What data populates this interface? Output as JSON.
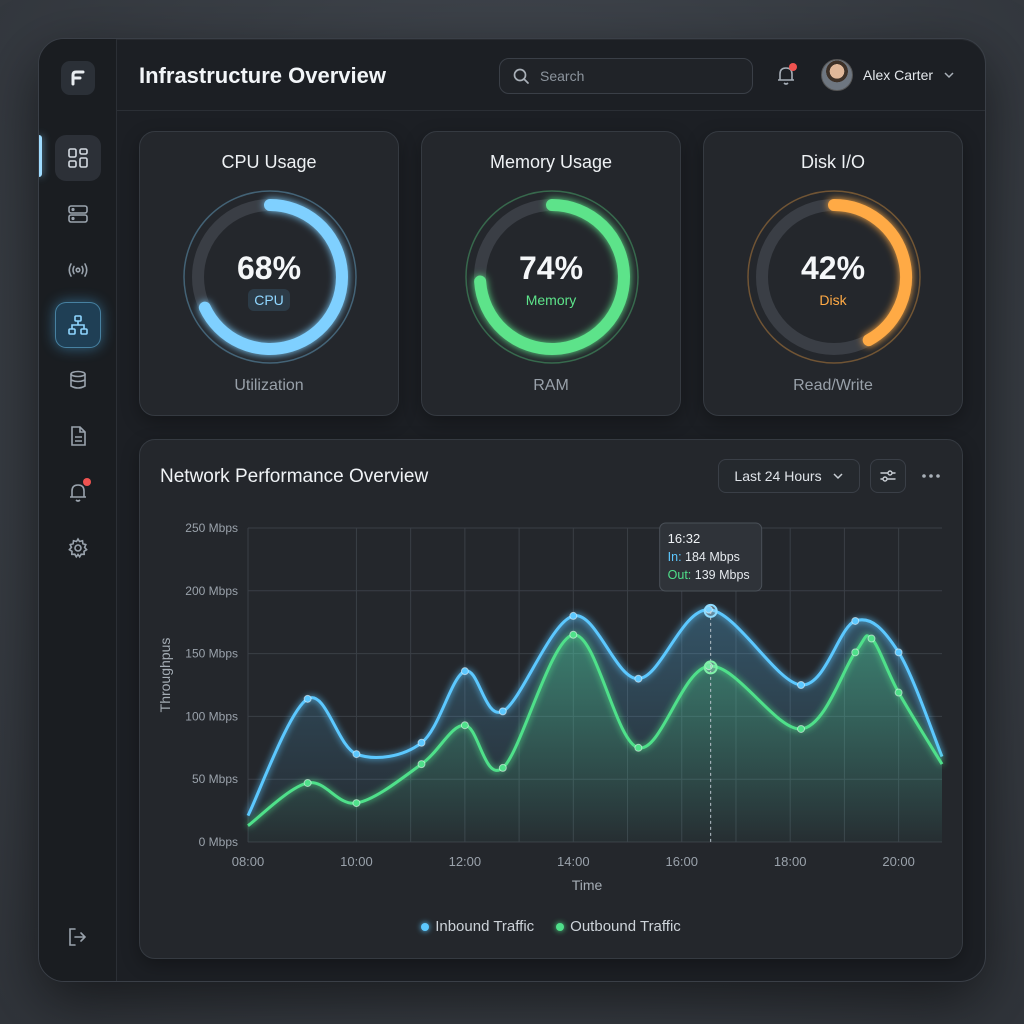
{
  "header": {
    "title": "Infrastructure Overview",
    "search_placeholder": "Search",
    "user_name": "Alex Carter"
  },
  "sidebar": {
    "items": [
      {
        "icon": "dashboard-icon"
      },
      {
        "icon": "server-icon"
      },
      {
        "icon": "broadcast-icon"
      },
      {
        "icon": "network-topology-icon"
      },
      {
        "icon": "database-icon"
      },
      {
        "icon": "document-icon"
      },
      {
        "icon": "alert-bell-icon"
      },
      {
        "icon": "settings-gear-icon"
      }
    ],
    "logout_icon": "logout-icon"
  },
  "gauges": [
    {
      "title": "CPU Usage",
      "value": "68%",
      "percent": 68,
      "label": "CPU",
      "sub": "Utilization",
      "color": "#7fd0ff"
    },
    {
      "title": "Memory Usage",
      "value": "74%",
      "percent": 74,
      "label": "Memory",
      "sub": "RAM",
      "color": "#5de38a"
    },
    {
      "title": "Disk I/O",
      "value": "42%",
      "percent": 42,
      "label": "Disk",
      "sub": "Read/Write",
      "color": "#ffaa45"
    }
  ],
  "network": {
    "title": "Network Performance Overview",
    "range_label": "Last 24 Hours",
    "tooltip": {
      "time": "16:32",
      "in_label": "In:",
      "in_value": "184 Mbps",
      "out_label": "Out:",
      "out_value": "139 Mbps"
    }
  },
  "chart_data": {
    "type": "line",
    "xlabel": "Time",
    "ylabel": "Throughpus",
    "x_ticks": [
      "08:00",
      "10:00",
      "12:00",
      "14:00",
      "16:00",
      "18:00",
      "20:00"
    ],
    "y_ticks": [
      "0 Mbps",
      "50 Mbps",
      "100 Mbps",
      "150 Mbps",
      "200 Mbps",
      "250 Mbps"
    ],
    "ylim": [
      0,
      250
    ],
    "xlim_hours": [
      8,
      20.8
    ],
    "grid": true,
    "legend": "bottom",
    "series": [
      {
        "name": "Inbound Traffic",
        "color": "#5cc8ff",
        "x": [
          8,
          9.1,
          10,
          11.2,
          12,
          12.7,
          14,
          15.2,
          16.5,
          18.2,
          19.2,
          20,
          20.8
        ],
        "y": [
          21,
          114,
          70,
          79,
          136,
          104,
          180,
          130,
          185,
          125,
          176,
          151,
          68
        ]
      },
      {
        "name": "Outbound Traffic",
        "color": "#4fe08a",
        "x": [
          8,
          9.1,
          10,
          11.2,
          12,
          12.7,
          14,
          15.2,
          16.5,
          18.2,
          19.2,
          19.5,
          20,
          20.8
        ],
        "y": [
          13,
          47,
          31,
          62,
          93,
          59,
          165,
          75,
          140,
          90,
          151,
          162,
          119,
          62
        ]
      }
    ]
  }
}
